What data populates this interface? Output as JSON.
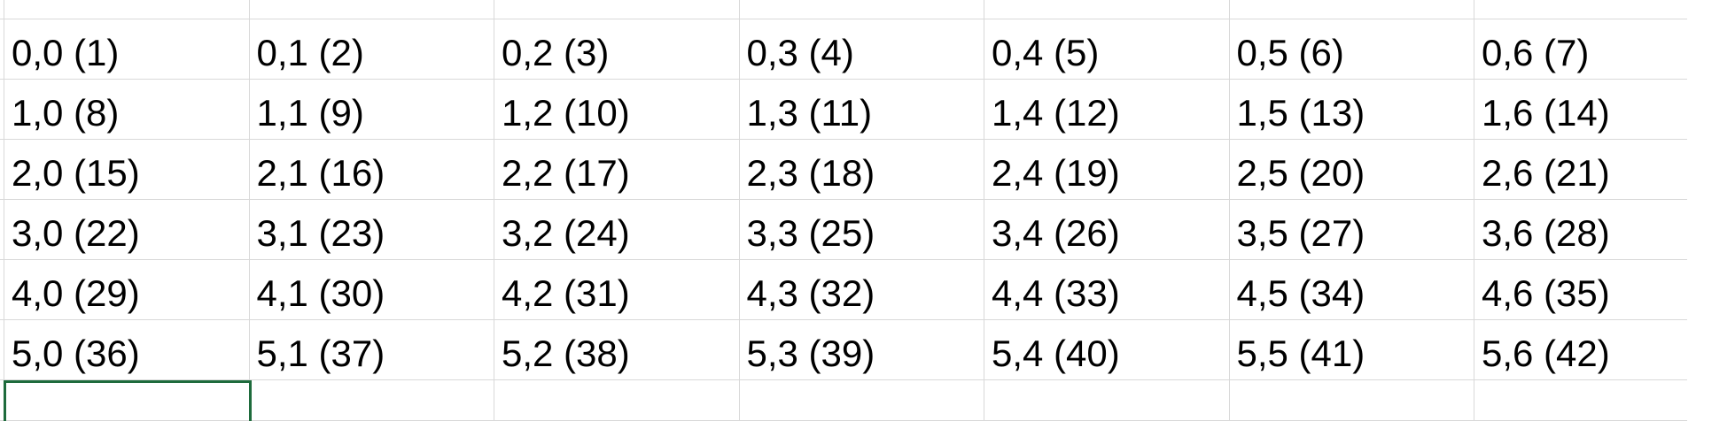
{
  "grid": {
    "rows": [
      [
        "0,0 (1)",
        "0,1 (2)",
        "0,2 (3)",
        "0,3 (4)",
        "0,4 (5)",
        "0,5 (6)",
        "0,6 (7)"
      ],
      [
        "1,0 (8)",
        "1,1 (9)",
        "1,2 (10)",
        "1,3 (11)",
        "1,4 (12)",
        "1,5 (13)",
        "1,6 (14)"
      ],
      [
        "2,0 (15)",
        "2,1 (16)",
        "2,2 (17)",
        "2,3 (18)",
        "2,4 (19)",
        "2,5 (20)",
        "2,6 (21)"
      ],
      [
        "3,0 (22)",
        "3,1 (23)",
        "3,2 (24)",
        "3,3 (25)",
        "3,4 (26)",
        "3,5 (27)",
        "3,6 (28)"
      ],
      [
        "4,0 (29)",
        "4,1 (30)",
        "4,2 (31)",
        "4,3 (32)",
        "4,4 (33)",
        "4,5 (34)",
        "4,6 (35)"
      ],
      [
        "5,0 (36)",
        "5,1 (37)",
        "5,2 (38)",
        "5,3 (39)",
        "5,4 (40)",
        "5,5 (41)",
        "5,6 (42)"
      ]
    ],
    "selection_color": "#1e6b3c",
    "gridline_color": "#d9d9d9"
  }
}
